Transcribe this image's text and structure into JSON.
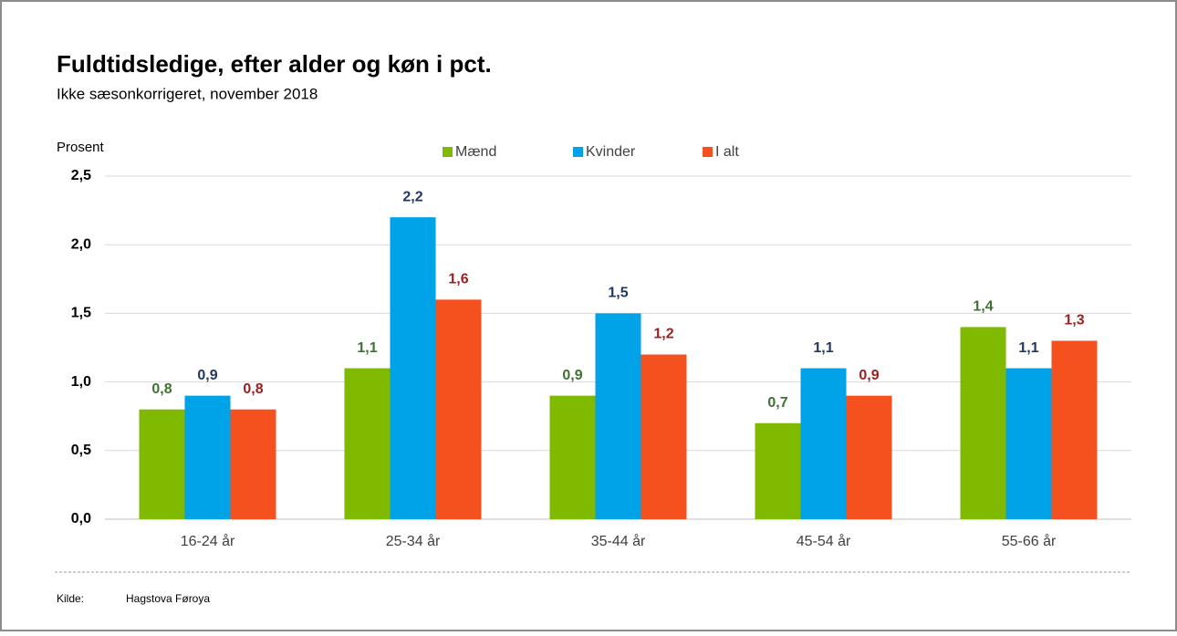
{
  "chart_data": {
    "type": "bar",
    "title": "Fuldtidsledige, efter alder og køn i pct.",
    "subtitle": "Ikke sæsonkorrigeret, november 2018",
    "y_axis_label": "Prosent",
    "categories": [
      "16-24 år",
      "25-34 år",
      "35-44 år",
      "45-54 år",
      "55-66 år"
    ],
    "series": [
      {
        "name": "Mænd",
        "color": "#7fba00",
        "label_color": "#3f7133",
        "values": [
          0.8,
          1.1,
          0.9,
          0.7,
          1.4
        ],
        "value_labels": [
          "0,8",
          "1,1",
          "0,9",
          "0,7",
          "1,4"
        ]
      },
      {
        "name": "Kvinder",
        "color": "#00a2e8",
        "label_color": "#1f3864",
        "values": [
          0.9,
          2.2,
          1.5,
          1.1,
          1.1
        ],
        "value_labels": [
          "0,9",
          "2,2",
          "1,5",
          "1,1",
          "1,1"
        ]
      },
      {
        "name": "I alt",
        "color": "#f4511e",
        "label_color": "#9c1f1f",
        "values": [
          0.8,
          1.6,
          1.2,
          0.9,
          1.3
        ],
        "value_labels": [
          "0,8",
          "1,6",
          "1,2",
          "0,9",
          "1,3"
        ]
      }
    ],
    "ylim": [
      0,
      2.5
    ],
    "yticks": [
      {
        "value": 0,
        "label": "0,0"
      },
      {
        "value": 0.5,
        "label": "0,5"
      },
      {
        "value": 1,
        "label": "1,0"
      },
      {
        "value": 1.5,
        "label": "1,5"
      },
      {
        "value": 2,
        "label": "2,0"
      },
      {
        "value": 2.5,
        "label": "2,5"
      }
    ],
    "grid": true,
    "legend": "top",
    "source_label": "Kilde:",
    "source": "Hagstova Føroya"
  }
}
